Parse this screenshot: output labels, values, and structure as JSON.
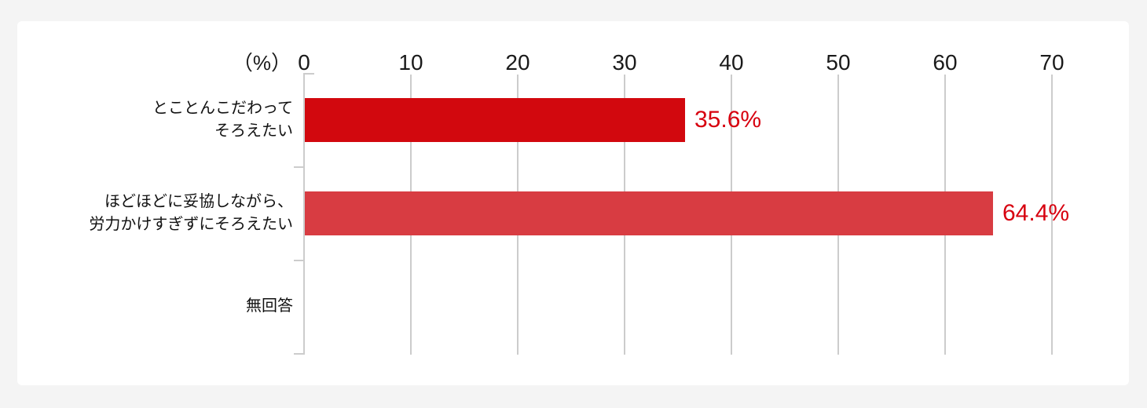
{
  "page": {
    "background_color": "#f4f4f4",
    "card_color": "#ffffff"
  },
  "chart_data": {
    "type": "bar",
    "orientation": "horizontal",
    "unit_label": "（%）",
    "categories": [
      "とことんこだわって\nそろえたい",
      "ほどほどに妥協しながら、\n労力かけすぎずにそろえたい",
      "無回答"
    ],
    "values": [
      35.6,
      64.4,
      0
    ],
    "value_labels": [
      "35.6%",
      "64.4%",
      ""
    ],
    "bar_colors": [
      "#d2080e",
      "#d83c42",
      "#d2080e"
    ],
    "value_label_color": "#d7000f",
    "xlim": [
      0,
      70
    ],
    "xticks": [
      "0",
      "10",
      "20",
      "30",
      "40",
      "50",
      "60",
      "70"
    ],
    "grid": true,
    "gridline_color": "#cccccc",
    "axis_text_color": "#1a1a1a",
    "legend": "none"
  }
}
